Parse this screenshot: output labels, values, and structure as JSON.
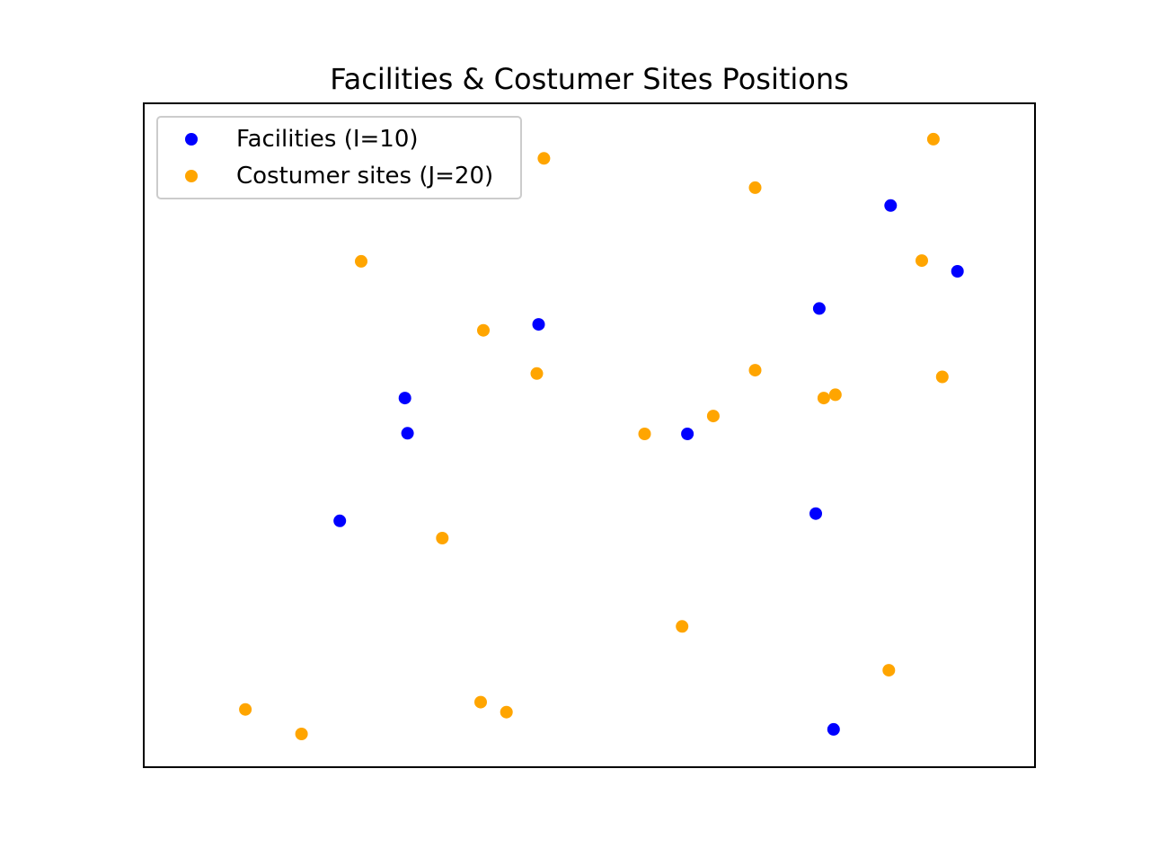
{
  "chart_data": {
    "type": "scatter",
    "title": "Facilities & Costumer Sites Positions",
    "xlabel": "",
    "ylabel": "",
    "xlim": [
      0,
      1
    ],
    "ylim": [
      0,
      1
    ],
    "grid": false,
    "axes_ticks_visible": false,
    "legend_position": "upper-left",
    "series": [
      {
        "name": "Facilities (I=10)",
        "color": "#0000ff",
        "points": [
          {
            "x": 0.838,
            "y": 0.846
          },
          {
            "x": 0.913,
            "y": 0.747
          },
          {
            "x": 0.758,
            "y": 0.691
          },
          {
            "x": 0.443,
            "y": 0.667
          },
          {
            "x": 0.293,
            "y": 0.556
          },
          {
            "x": 0.296,
            "y": 0.503
          },
          {
            "x": 0.61,
            "y": 0.502
          },
          {
            "x": 0.22,
            "y": 0.371
          },
          {
            "x": 0.754,
            "y": 0.382
          },
          {
            "x": 0.774,
            "y": 0.057
          }
        ]
      },
      {
        "name": "Costumer sites (J=20)",
        "color": "#ffa500",
        "points": [
          {
            "x": 0.886,
            "y": 0.946
          },
          {
            "x": 0.449,
            "y": 0.917
          },
          {
            "x": 0.686,
            "y": 0.873
          },
          {
            "x": 0.244,
            "y": 0.762
          },
          {
            "x": 0.873,
            "y": 0.763
          },
          {
            "x": 0.381,
            "y": 0.658
          },
          {
            "x": 0.441,
            "y": 0.593
          },
          {
            "x": 0.686,
            "y": 0.598
          },
          {
            "x": 0.896,
            "y": 0.588
          },
          {
            "x": 0.776,
            "y": 0.561
          },
          {
            "x": 0.763,
            "y": 0.556
          },
          {
            "x": 0.639,
            "y": 0.529
          },
          {
            "x": 0.562,
            "y": 0.502
          },
          {
            "x": 0.335,
            "y": 0.345
          },
          {
            "x": 0.604,
            "y": 0.212
          },
          {
            "x": 0.836,
            "y": 0.146
          },
          {
            "x": 0.378,
            "y": 0.098
          },
          {
            "x": 0.407,
            "y": 0.083
          },
          {
            "x": 0.114,
            "y": 0.087
          },
          {
            "x": 0.177,
            "y": 0.05
          }
        ]
      }
    ]
  }
}
